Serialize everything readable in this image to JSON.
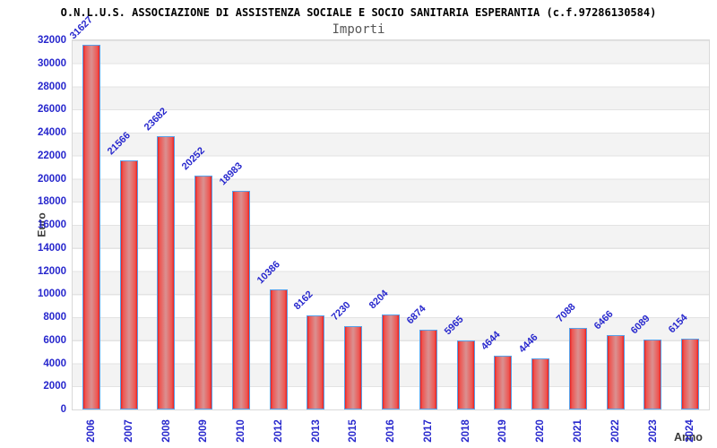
{
  "header": {
    "title": "O.N.L.U.S. ASSOCIAZIONE DI ASSISTENZA SOCIALE E SOCIO SANITARIA ESPERANTIA (c.f.97286130584)",
    "subtitle": "Importi"
  },
  "chart_data": {
    "type": "bar",
    "title": "Importi",
    "categories": [
      "2006",
      "2007",
      "2008",
      "2009",
      "2010",
      "2012",
      "2013",
      "2015",
      "2016",
      "2017",
      "2018",
      "2019",
      "2020",
      "2021",
      "2022",
      "2023",
      "2024"
    ],
    "values": [
      31627,
      21566,
      23682,
      20252,
      18983,
      10386,
      8162,
      7230,
      8204,
      6874,
      5965,
      4644,
      4446,
      7088,
      6466,
      6089,
      6154
    ],
    "xlabel": "Anno",
    "ylabel": "Euro",
    "ylim": [
      0,
      32000
    ],
    "ytick_step": 2000,
    "grid": true,
    "legend_position": "none",
    "colors": {
      "bar_edge": "#e9201f",
      "bar_center": "#da9191",
      "bar_border": "#58a0e8",
      "tick_label": "#2727cd",
      "axis_title": "#3a3a3a",
      "band_gray": "#f3f3f3",
      "gridline": "#e3e3e3"
    }
  }
}
